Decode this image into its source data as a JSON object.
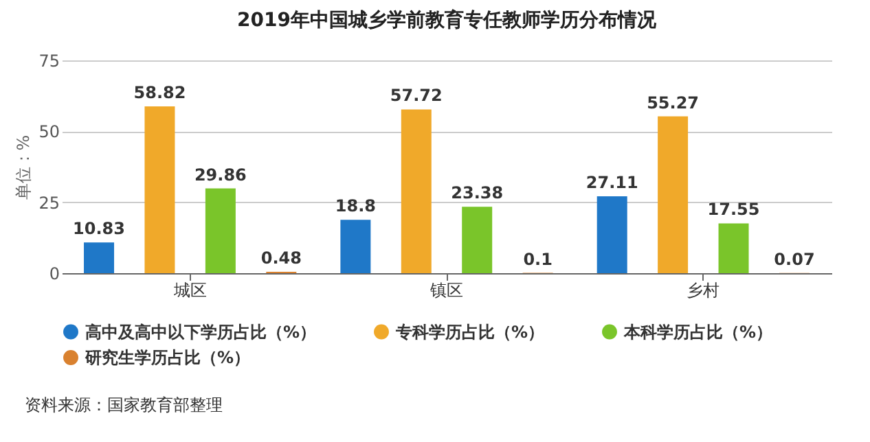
{
  "chart_data": {
    "type": "bar",
    "title": "2019年中国城乡学前教育专任教师学历分布情况",
    "ylabel": "单位：%",
    "categories": [
      "城区",
      "镇区",
      "乡村"
    ],
    "series": [
      {
        "name": "高中及高中以下学历占比（%）",
        "color": "#1f78c8",
        "values": [
          10.83,
          18.8,
          27.11
        ]
      },
      {
        "name": "专科学历占比（%）",
        "color": "#f0a92a",
        "values": [
          58.82,
          57.72,
          55.27
        ]
      },
      {
        "name": "本科学历占比（%）",
        "color": "#7ac52a",
        "values": [
          29.86,
          23.38,
          17.55
        ]
      },
      {
        "name": "研究生学历占比（%）",
        "color": "#d9812f",
        "values": [
          0.48,
          0.1,
          0.07
        ]
      }
    ],
    "ylim": [
      0,
      75
    ],
    "yticks": [
      0,
      25,
      50,
      75
    ],
    "grid": "y",
    "legend": "bottom",
    "data_labels": true,
    "annotations": [
      "资料来源：国家教育部整理"
    ]
  }
}
